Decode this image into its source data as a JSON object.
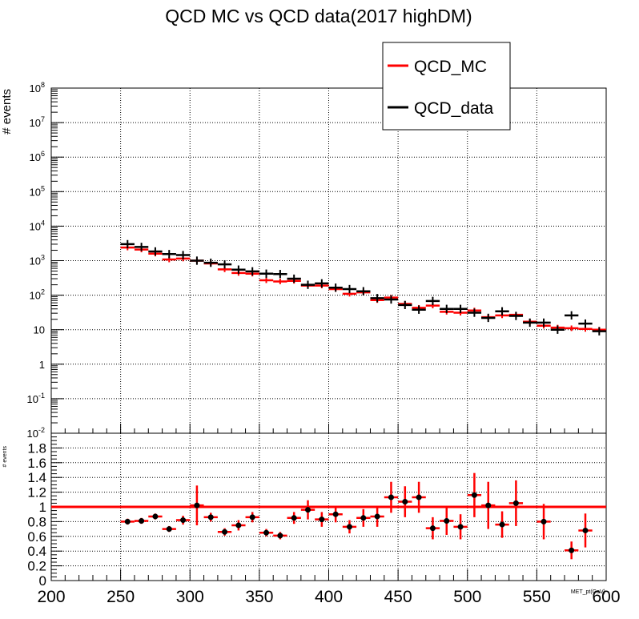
{
  "chart_data": [
    {
      "type": "histogram",
      "title": "QCD MC vs QCD data(2017 highDM)",
      "ylabel": "# events",
      "ylog": true,
      "ylim": [
        0.01,
        100000000
      ],
      "xlim": [
        200,
        600
      ],
      "grid": true,
      "legend": {
        "placement": "top-right",
        "entries": [
          "QCD_MC",
          "QCD_data"
        ]
      },
      "y_tick_labels": [
        "10^-2",
        "10^-1",
        "1",
        "10",
        "10^2",
        "10^3",
        "10^4",
        "10^5",
        "10^6",
        "10^7",
        "10^8"
      ],
      "bin_width": 10,
      "x_bin_centers": [
        255,
        265,
        275,
        285,
        295,
        305,
        315,
        325,
        335,
        345,
        355,
        365,
        375,
        385,
        395,
        405,
        415,
        425,
        435,
        445,
        455,
        465,
        475,
        485,
        495,
        505,
        515,
        525,
        535,
        545,
        555,
        565,
        575,
        585,
        595
      ],
      "series": [
        {
          "name": "QCD_MC",
          "color": "#ff0000",
          "values": [
            2400,
            2100,
            1600,
            1080,
            1150,
            1000,
            830,
            560,
            440,
            420,
            270,
            250,
            260,
            190,
            190,
            150,
            110,
            120,
            72,
            85,
            56,
            43,
            50,
            33,
            31,
            36,
            23,
            26,
            27,
            17,
            13,
            11.5,
            11,
            10.5,
            10
          ]
        },
        {
          "name": "QCD_data",
          "color": "#000000",
          "values": [
            3000,
            2500,
            1850,
            1550,
            1450,
            1000,
            870,
            780,
            550,
            490,
            420,
            410,
            300,
            200,
            220,
            165,
            150,
            130,
            82,
            75,
            52,
            38,
            68,
            40,
            40,
            31,
            22,
            34,
            25,
            16,
            16,
            10,
            26,
            15,
            9
          ]
        }
      ]
    },
    {
      "type": "scatter",
      "xlabel": "MET_pt(GeV)",
      "ylabel": "# events",
      "xlim": [
        200,
        600
      ],
      "ylim": [
        0,
        2
      ],
      "grid": true,
      "x_ticks": [
        200,
        250,
        300,
        350,
        400,
        450,
        500,
        550,
        600
      ],
      "y_ticks": [
        0,
        0.2,
        0.4,
        0.6,
        0.8,
        1,
        1.2,
        1.4,
        1.6,
        1.8
      ],
      "reference_line": {
        "y": 1,
        "color": "#ff0000"
      },
      "series": [
        {
          "name": "",
          "color": "#000000",
          "error_color": "#ff0000",
          "x": [
            255,
            265,
            275,
            285,
            295,
            305,
            315,
            325,
            335,
            345,
            355,
            365,
            375,
            385,
            395,
            405,
            415,
            425,
            435,
            445,
            455,
            465,
            475,
            485,
            495,
            505,
            515,
            525,
            535,
            555,
            575,
            585
          ],
          "y": [
            0.8,
            0.81,
            0.87,
            0.7,
            0.82,
            1.02,
            0.86,
            0.66,
            0.75,
            0.86,
            0.65,
            0.61,
            0.85,
            0.96,
            0.83,
            0.9,
            0.73,
            0.85,
            0.87,
            1.13,
            1.07,
            1.13,
            0.71,
            0.81,
            0.73,
            1.16,
            1.02,
            0.76,
            1.05,
            0.8,
            0.41,
            0.68
          ],
          "err": [
            0.04,
            0.04,
            0.04,
            0.04,
            0.06,
            0.27,
            0.06,
            0.05,
            0.07,
            0.07,
            0.05,
            0.05,
            0.08,
            0.13,
            0.1,
            0.11,
            0.09,
            0.12,
            0.14,
            0.21,
            0.21,
            0.21,
            0.15,
            0.19,
            0.17,
            0.3,
            0.32,
            0.18,
            0.31,
            0.24,
            0.12,
            0.23
          ]
        }
      ]
    }
  ]
}
